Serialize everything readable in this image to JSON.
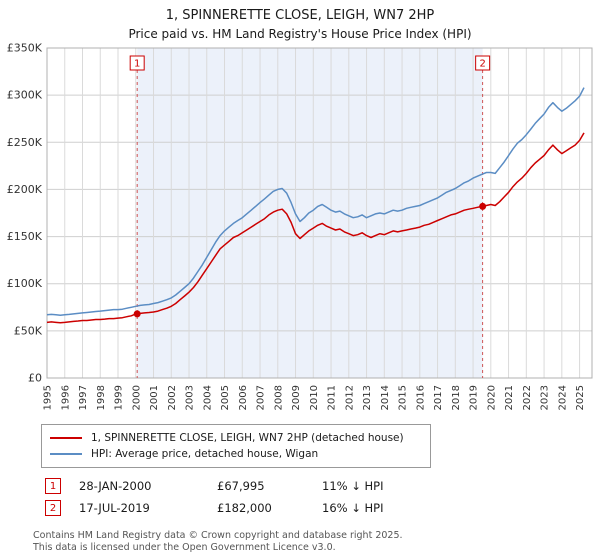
{
  "title": "1, SPINNERETTE CLOSE, LEIGH, WN7 2HP",
  "subtitle": "Price paid vs. HM Land Registry's House Price Index (HPI)",
  "footer": {
    "line1": "Contains HM Land Registry data © Crown copyright and database right 2025.",
    "line2": "This data is licensed under the Open Government Licence v3.0."
  },
  "chart_data": {
    "type": "line",
    "title": "1, SPINNERETTE CLOSE, LEIGH, WN7 2HP",
    "subtitle": "Price paid vs. HM Land Registry's House Price Index (HPI)",
    "units": "GBP thousands",
    "x_start": 1995.0,
    "x_step": 0.25,
    "x_range": [
      1995,
      2025.7
    ],
    "ylim": [
      0,
      350
    ],
    "grid": true,
    "y_ticks": [
      {
        "v": 0,
        "label": "£0"
      },
      {
        "v": 50,
        "label": "£50K"
      },
      {
        "v": 100,
        "label": "£100K"
      },
      {
        "v": 150,
        "label": "£150K"
      },
      {
        "v": 200,
        "label": "£200K"
      },
      {
        "v": 250,
        "label": "£250K"
      },
      {
        "v": 300,
        "label": "£300K"
      },
      {
        "v": 350,
        "label": "£350K"
      }
    ],
    "x_ticks": [
      1995,
      1996,
      1997,
      1998,
      1999,
      2000,
      2001,
      2002,
      2003,
      2004,
      2005,
      2006,
      2007,
      2008,
      2009,
      2010,
      2011,
      2012,
      2013,
      2014,
      2015,
      2016,
      2017,
      2018,
      2019,
      2020,
      2021,
      2022,
      2023,
      2024,
      2025
    ],
    "shaded_span": [
      2000.08,
      2019.54
    ],
    "shade_color": "#dce6f5",
    "series": [
      {
        "name": "HPI: Average price, detached house, Wigan",
        "color": "#5b8dc4",
        "values": [
          67,
          67.5,
          67,
          66.5,
          67,
          67.5,
          68,
          68.5,
          69,
          69.5,
          70,
          70.5,
          71,
          71.5,
          72,
          72.5,
          72.5,
          73,
          74,
          75,
          76,
          77,
          77.5,
          78,
          79,
          80,
          81.5,
          83,
          85,
          88,
          92,
          96,
          100,
          106,
          113,
          120,
          128,
          136,
          144,
          151,
          156,
          160,
          164,
          167,
          170,
          174,
          178,
          182,
          186,
          190,
          194,
          198,
          200,
          201,
          196,
          186,
          174,
          166,
          170,
          175,
          178,
          182,
          184,
          181,
          178,
          176,
          177,
          174,
          172,
          170,
          171,
          173,
          170,
          172,
          174,
          175,
          174,
          176,
          178,
          177,
          178,
          180,
          181,
          182,
          183,
          185,
          187,
          189,
          191,
          194,
          197,
          199,
          201,
          204,
          207,
          209,
          212,
          214,
          216,
          218,
          218,
          217,
          223,
          229,
          236,
          243,
          249,
          253,
          258,
          264,
          270,
          275,
          280,
          287,
          292,
          287,
          283,
          286,
          290,
          294,
          299,
          308
        ]
      },
      {
        "name": "1, SPINNERETTE CLOSE, LEIGH, WN7 2HP (detached house)",
        "color": "#cc0000",
        "values": [
          59,
          59.5,
          59,
          58.5,
          59,
          59.5,
          60,
          60.5,
          61,
          61,
          61.5,
          62,
          62,
          62.5,
          63,
          63,
          63.5,
          64,
          65,
          66,
          68,
          68.5,
          69,
          69.5,
          70,
          71,
          72.5,
          74,
          76,
          79,
          83,
          87,
          91,
          96,
          102,
          109,
          116,
          123,
          130,
          137,
          141,
          145,
          149,
          151,
          154,
          157,
          160,
          163,
          166,
          169,
          173,
          176,
          178,
          179,
          174,
          165,
          153,
          148,
          152,
          156,
          159,
          162,
          164,
          161,
          159,
          157,
          158,
          155,
          153,
          151,
          152,
          154,
          151,
          149,
          151,
          153,
          152,
          154,
          156,
          155,
          156,
          157,
          158,
          159,
          160,
          162,
          163,
          165,
          167,
          169,
          171,
          173,
          174,
          176,
          178,
          179,
          180,
          181,
          182,
          183,
          184,
          183,
          187,
          192,
          197,
          203,
          208,
          212,
          217,
          223,
          228,
          232,
          236,
          242,
          247,
          242,
          238,
          241,
          244,
          247,
          252,
          260
        ]
      }
    ],
    "legend_order": [
      1,
      0
    ],
    "markers": [
      {
        "label": "1",
        "x": 2000.08,
        "y": 67.995,
        "date": "28-JAN-2000",
        "price": "£67,995",
        "vs_hpi": "11% ↓ HPI"
      },
      {
        "label": "2",
        "x": 2019.54,
        "y": 182.0,
        "date": "17-JUL-2019",
        "price": "£182,000",
        "vs_hpi": "16% ↓ HPI"
      }
    ]
  }
}
